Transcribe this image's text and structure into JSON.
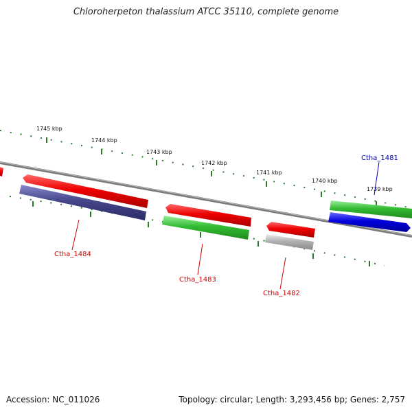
{
  "title": "Chloroherpeton thalassium ATCC 35110, complete genome",
  "footer": {
    "accession": "Accession: NC_011026",
    "topology": "Topology: circular",
    "length": "Length: 3,293,456 bp",
    "genes": "Genes: 2,757"
  },
  "ruler": {
    "tick_labels": [
      "1745 kbp",
      "1744 kbp",
      "1743 kbp",
      "1742 kbp",
      "1741 kbp",
      "1740 kbp",
      "1739 kbp"
    ]
  },
  "colors": {
    "backbone": "#7a7a7a",
    "forward_red": "#ee0000",
    "reverse_green": "#33bb33",
    "slate_blue": "#45458a",
    "grey": "#b0b0b0",
    "blue": "#0000dd",
    "ruler_green": "#2a7a2a",
    "label_red": "#cc0000",
    "label_blue": "#0000aa"
  },
  "genes": [
    {
      "label": "Ctha_1484",
      "label_color": "#cc0000"
    },
    {
      "label": "Ctha_1483",
      "label_color": "#cc0000"
    },
    {
      "label": "Ctha_1482",
      "label_color": "#cc0000"
    },
    {
      "label": "Ctha_1481",
      "label_color": "#0000aa"
    }
  ]
}
